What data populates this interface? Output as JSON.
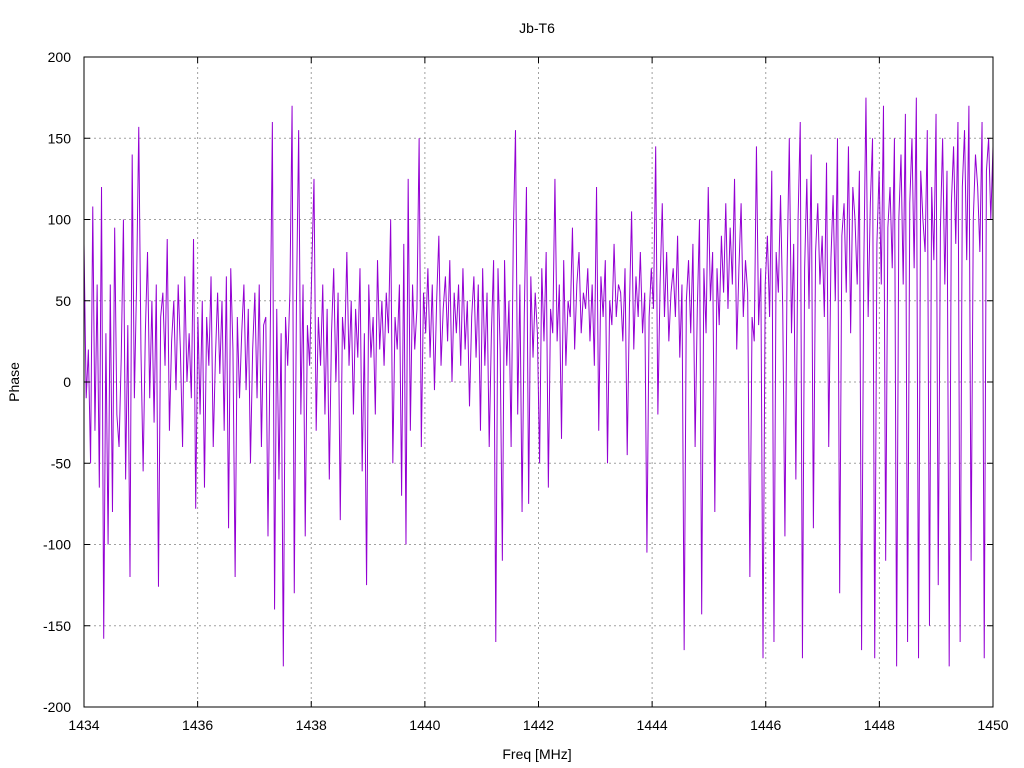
{
  "chart_data": {
    "type": "line",
    "title": "Jb-T6",
    "xlabel": "Freq [MHz]",
    "ylabel": "Phase",
    "xlim": [
      1434,
      1450
    ],
    "ylim": [
      -200,
      200
    ],
    "x_ticks": [
      "1434",
      "1436",
      "1438",
      "1440",
      "1442",
      "1444",
      "1446",
      "1448",
      "1450"
    ],
    "y_ticks": [
      "200",
      "150",
      "100",
      "50",
      "0",
      "-50",
      "-100",
      "-150",
      "-200"
    ],
    "grid": true,
    "series": [
      {
        "color": "#9400d3",
        "x_start": 1434,
        "x_end": 1450,
        "values": [
          85,
          -10,
          20,
          -50,
          108,
          -30,
          60,
          -65,
          120,
          -158,
          30,
          -100,
          60,
          -80,
          95,
          -20,
          -40,
          15,
          100,
          -60,
          35,
          -120,
          140,
          -10,
          60,
          157,
          20,
          -55,
          30,
          80,
          -10,
          50,
          -25,
          60,
          -126,
          40,
          55,
          10,
          88,
          -30,
          25,
          50,
          -5,
          60,
          20,
          -40,
          65,
          0,
          30,
          -10,
          88,
          -78,
          40,
          -20,
          50,
          -65,
          40,
          10,
          65,
          -40,
          15,
          55,
          5,
          50,
          -30,
          65,
          -90,
          70,
          20,
          -120,
          40,
          -10,
          30,
          60,
          -5,
          45,
          -50,
          20,
          55,
          -10,
          60,
          -40,
          35,
          40,
          -95,
          25,
          160,
          -140,
          45,
          -60,
          30,
          -175,
          40,
          10,
          55,
          170,
          -130,
          50,
          155,
          -20,
          60,
          -95,
          35,
          10,
          70,
          125,
          -30,
          40,
          10,
          60,
          -20,
          45,
          -60,
          30,
          70,
          0,
          55,
          -85,
          40,
          20,
          80,
          10,
          50,
          -20,
          45,
          15,
          70,
          -55,
          30,
          -125,
          60,
          15,
          40,
          -20,
          75,
          20,
          50,
          10,
          55,
          30,
          100,
          -50,
          40,
          20,
          60,
          -70,
          85,
          -100,
          125,
          -30,
          60,
          20,
          45,
          150,
          -40,
          55,
          30,
          70,
          15,
          60,
          -5,
          50,
          90,
          10,
          45,
          65,
          25,
          75,
          0,
          55,
          30,
          60,
          10,
          70,
          20,
          50,
          -15,
          40,
          65,
          15,
          60,
          -30,
          70,
          10,
          55,
          -40,
          30,
          75,
          -160,
          70,
          20,
          -110,
          75,
          10,
          50,
          -40,
          90,
          155,
          -20,
          60,
          -80,
          40,
          120,
          -75,
          65,
          15,
          55,
          30,
          -50,
          70,
          25,
          80,
          -65,
          45,
          30,
          125,
          25,
          60,
          -35,
          75,
          10,
          50,
          40,
          95,
          20,
          60,
          80,
          30,
          55,
          45,
          70,
          25,
          60,
          10,
          120,
          -30,
          65,
          40,
          75,
          -50,
          50,
          35,
          85,
          40,
          60,
          55,
          25,
          70,
          -45,
          45,
          105,
          20,
          65,
          40,
          80,
          30,
          55,
          -105,
          40,
          70,
          45,
          145,
          -20,
          60,
          110,
          40,
          80,
          25,
          55,
          70,
          40,
          90,
          15,
          60,
          -165,
          50,
          75,
          30,
          85,
          -40,
          45,
          100,
          -143,
          70,
          30,
          120,
          50,
          80,
          -80,
          70,
          35,
          90,
          55,
          110,
          45,
          95,
          60,
          125,
          20,
          70,
          110,
          40,
          75,
          55,
          -120,
          40,
          25,
          145,
          35,
          70,
          -170,
          60,
          90,
          40,
          130,
          -160,
          80,
          55,
          115,
          45,
          -95,
          70,
          150,
          30,
          85,
          -60,
          100,
          160,
          -170,
          70,
          125,
          45,
          140,
          -90,
          80,
          110,
          60,
          90,
          40,
          135,
          -40,
          75,
          115,
          50,
          150,
          -130,
          90,
          110,
          55,
          145,
          30,
          120,
          100,
          60,
          130,
          -165,
          70,
          175,
          40,
          110,
          150,
          -170,
          85,
          130,
          60,
          170,
          -110,
          95,
          120,
          70,
          150,
          -175,
          100,
          140,
          60,
          165,
          -160,
          110,
          150,
          70,
          175,
          -170,
          130,
          100,
          80,
          155,
          -150,
          120,
          75,
          165,
          -125,
          95,
          150,
          60,
          130,
          -175,
          110,
          145,
          85,
          160,
          -160,
          120,
          155,
          75,
          170,
          -110,
          100,
          140,
          120,
          80,
          160,
          -170,
          130,
          150,
          100,
          145
        ]
      }
    ]
  }
}
